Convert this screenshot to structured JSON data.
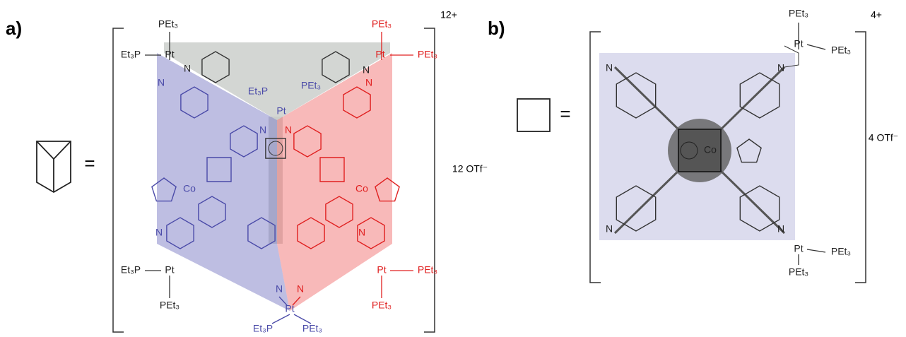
{
  "panel_a": {
    "label": "a)",
    "equals": "=",
    "charge": "12+",
    "counterion": "12 OTf⁻",
    "atoms": [
      "PEt₃",
      "Et₃P",
      "Pt",
      "N",
      "N",
      "Et₃P",
      "PEt₃",
      "Pt",
      "N",
      "N",
      "Co",
      "Co",
      "PEt₃",
      "Pt",
      "PEt₃",
      "N",
      "N",
      "N",
      "N",
      "Et₃P",
      "Pt",
      "PEt₃",
      "Pt",
      "PEt₃",
      "PEt₃",
      "N",
      "N",
      "Pt",
      "Et₃P",
      "PEt₃"
    ]
  },
  "panel_b": {
    "label": "b)",
    "equals": "=",
    "charge": "4+",
    "counterion": "4 OTf⁻",
    "atoms": [
      "PEt₃",
      "Pt",
      "PEt₃",
      "N",
      "N",
      "Co",
      "N",
      "N",
      "Pt",
      "PEt₃",
      "PEt₃"
    ]
  }
}
